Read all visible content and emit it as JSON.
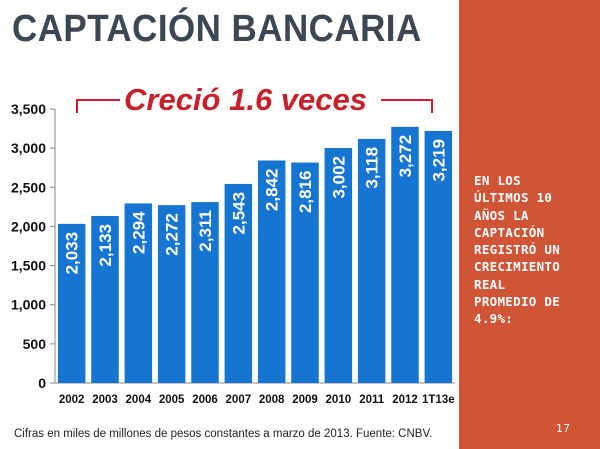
{
  "title": "CAPTACIÓN BANCARIA",
  "growth_annotation": "Creció 1.6 veces",
  "side_panel": {
    "text": "EN LOS\nÚLTIMOS 10\nAÑOS LA\nCAPTACIÓN\nREGISTRÓ UN\nCRECIMIENTO\nREAL\nPROMEDIO DE\n4.9%:",
    "page_number": "17",
    "background_color": "#d05436"
  },
  "footnote": "Cifras en miles de millones de pesos constantes a marzo de 2013. Fuente: CNBV.",
  "chart_data": {
    "type": "bar",
    "categories": [
      "2002",
      "2003",
      "2004",
      "2005",
      "2006",
      "2007",
      "2008",
      "2009",
      "2010",
      "2011",
      "2012",
      "1T13e"
    ],
    "values": [
      2033,
      2133,
      2294,
      2272,
      2311,
      2543,
      2842,
      2816,
      3002,
      3118,
      3272,
      3219
    ],
    "value_labels": [
      "2,033",
      "2,133",
      "2,294",
      "2,272",
      "2,311",
      "2,543",
      "2,842",
      "2,816",
      "3,002",
      "3,118",
      "3,272",
      "3,219"
    ],
    "yticks": [
      "0",
      "500",
      "1,000",
      "1,500",
      "2,000",
      "2,500",
      "3,000",
      "3,500"
    ],
    "ylim": [
      0,
      3500
    ],
    "bar_color": "#1675d0",
    "grid": false,
    "xlabel": "",
    "ylabel": ""
  }
}
